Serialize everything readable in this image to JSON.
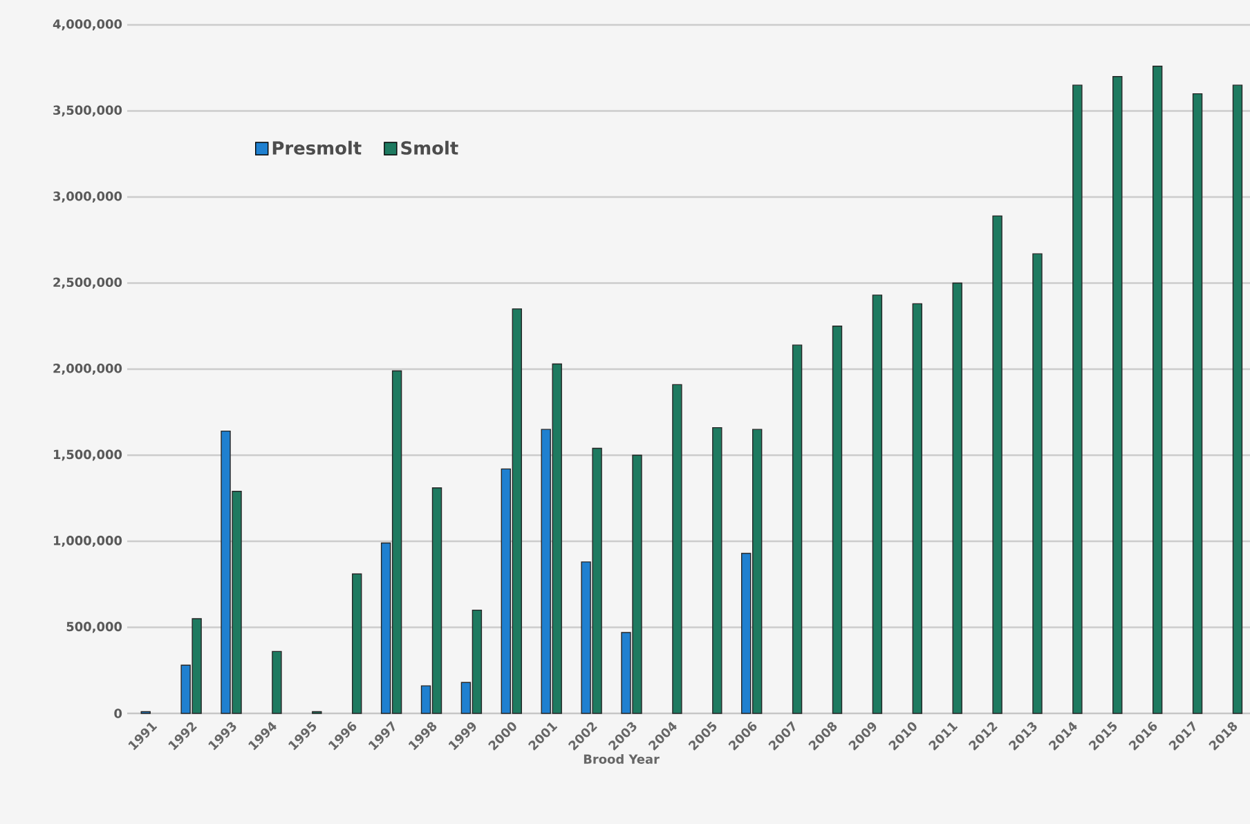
{
  "chart_data": {
    "type": "bar",
    "xlabel": "Brood Year",
    "categories": [
      "1991",
      "1992",
      "1993",
      "1994",
      "1995",
      "1996",
      "1997",
      "1998",
      "1999",
      "2000",
      "2001",
      "2002",
      "2003",
      "2004",
      "2005",
      "2006",
      "2007",
      "2008",
      "2009",
      "2010",
      "2011",
      "2012",
      "2013",
      "2014",
      "2015",
      "2016",
      "2017",
      "2018"
    ],
    "series": [
      {
        "name": "Presmolt",
        "color": "#1f80d0",
        "values": [
          10000,
          280000,
          1640000,
          null,
          null,
          null,
          990000,
          160000,
          180000,
          1420000,
          1650000,
          880000,
          470000,
          null,
          null,
          930000,
          null,
          null,
          null,
          null,
          null,
          null,
          null,
          null,
          null,
          null,
          null,
          null
        ]
      },
      {
        "name": "Smolt",
        "color": "#1e7a60",
        "values": [
          null,
          550000,
          1290000,
          360000,
          10000,
          810000,
          1990000,
          1310000,
          600000,
          2350000,
          2030000,
          1540000,
          1500000,
          1910000,
          1660000,
          1650000,
          2140000,
          2250000,
          2430000,
          2380000,
          2500000,
          2890000,
          2670000,
          3650000,
          3700000,
          3760000,
          3600000,
          3650000
        ]
      }
    ],
    "ylim": [
      0,
      4000000
    ],
    "yticks": [
      {
        "value": 0,
        "label": "0"
      },
      {
        "value": 500000,
        "label": "500,000"
      },
      {
        "value": 1000000,
        "label": "1,000,000"
      },
      {
        "value": 1500000,
        "label": "1,500,000"
      },
      {
        "value": 2000000,
        "label": "2,000,000"
      },
      {
        "value": 2500000,
        "label": "2,500,000"
      },
      {
        "value": 3000000,
        "label": "3,000,000"
      },
      {
        "value": 3500000,
        "label": "3,500,000"
      },
      {
        "value": 4000000,
        "label": "4,000,000"
      }
    ],
    "grid": "y",
    "legend": "top left"
  }
}
